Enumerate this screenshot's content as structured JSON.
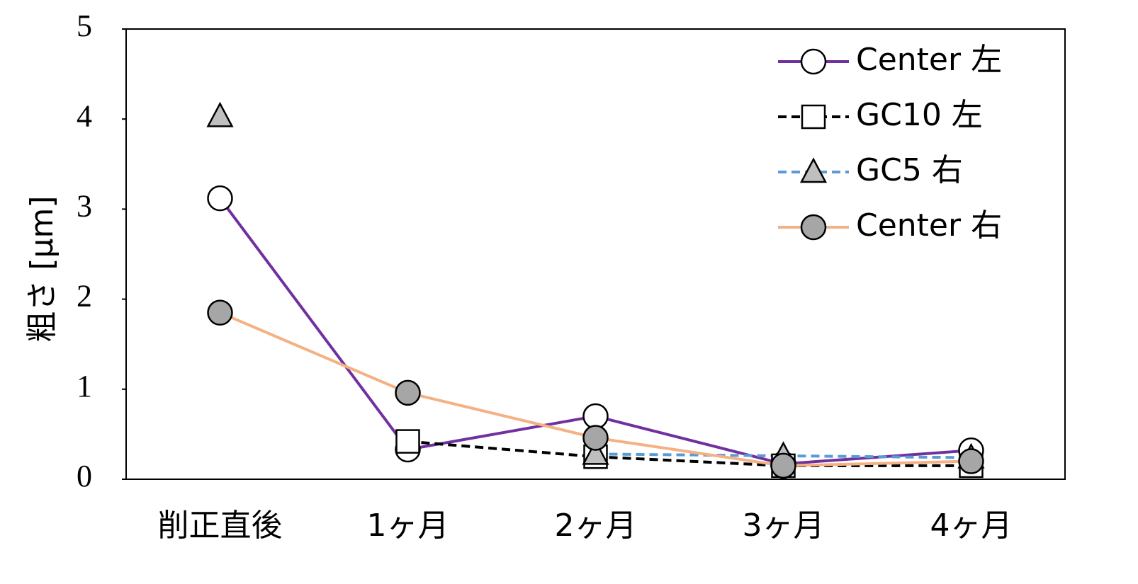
{
  "chart_data": {
    "type": "line",
    "y_label": "粗さ [μm]",
    "categories": [
      "削正直後",
      "1ヶ月",
      "2ヶ月",
      "3ヶ月",
      "4ヶ月"
    ],
    "ylim": [
      0,
      5
    ],
    "yticks": [
      0,
      1,
      2,
      3,
      4,
      5
    ],
    "legend": "top-right",
    "series": [
      {
        "name": "Center 左",
        "color": "#7030a0",
        "dash": "solid",
        "marker": "circle",
        "marker_fill": "#ffffff",
        "values": [
          3.12,
          0.33,
          0.7,
          0.17,
          0.32
        ]
      },
      {
        "name": "GC10 左",
        "color": "#000000",
        "dash": "dashed",
        "marker": "square",
        "marker_fill": "#ffffff",
        "values": [
          null,
          0.42,
          0.25,
          0.15,
          0.15
        ]
      },
      {
        "name": "GC5 右",
        "color": "#5b9bd5",
        "dash": "dashed",
        "marker": "triangle",
        "marker_fill": "#bfbfbf",
        "values": [
          4.03,
          null,
          0.28,
          0.26,
          0.24
        ]
      },
      {
        "name": "Center 右",
        "color": "#f4b183",
        "dash": "solid",
        "marker": "circle",
        "marker_fill": "#a6a6a6",
        "values": [
          1.85,
          0.96,
          0.46,
          0.15,
          0.2
        ]
      }
    ]
  }
}
